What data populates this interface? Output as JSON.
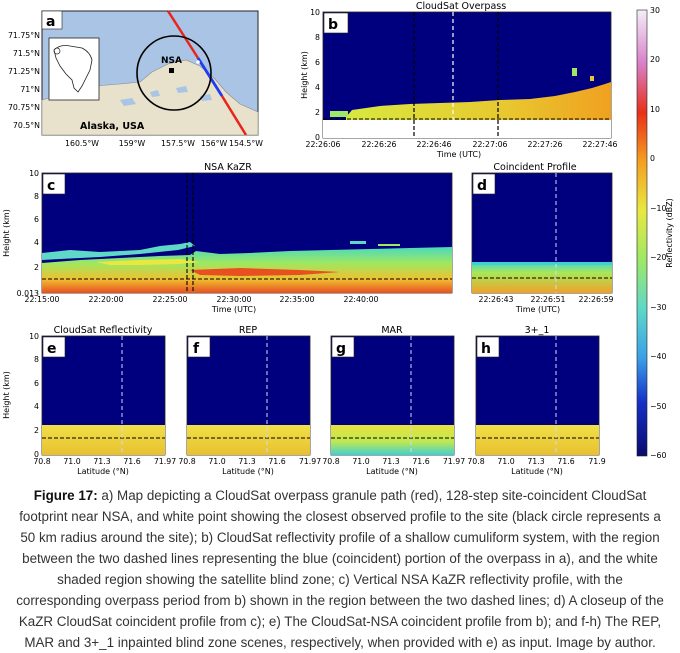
{
  "caption": {
    "label": "Figure 17:",
    "text": " a) Map depicting a CloudSat overpass granule path (red), 128-step site-coincident CloudSat footprint near NSA, and white point showing the closest observed profile to the site (black circle represents a 50 km radius around the site); b) CloudSat reflectivity profile of a shallow cumuliform system, with the region between the two dashed lines representing the blue (coincident) portion of the overpass in a), and the white shaded region showing the satellite blind zone; c) Vertical NSA KaZR reflectivity profile, with the corresponding overpass period from b) shown in the region between the two dashed lines; d) A closeup of the KaZR CloudSat coincident profile from c); e) The CloudSat-NSA coincident profile from b); and f-h) The REP, MAR and 3+_1 inpainted blind zone scenes, respectively, when provided with e) as input. Image by author."
  },
  "colors": {
    "background": "#00007e",
    "map_land": "#e8e2cc",
    "map_ocean": "#a9c4e4",
    "track_red": "#e8241c",
    "track_blue": "#1f3cf0"
  },
  "colorbar": {
    "label": "Reflectivity (dBZ)",
    "ticks": [
      "30",
      "20",
      "10",
      "0",
      "−10",
      "−20",
      "−30",
      "−40",
      "−50",
      "−60"
    ],
    "values": [
      30,
      20,
      10,
      0,
      -10,
      -20,
      -30,
      -40,
      -50,
      -60
    ],
    "range": [
      -60,
      30
    ]
  },
  "panels": {
    "a": {
      "letter": "a",
      "site_label": "NSA",
      "region_label": "Alaska, USA",
      "lat_ticks": [
        "71.75°N",
        "71.5°N",
        "71.25°N",
        "71°N",
        "70.75°N",
        "70.5°N"
      ],
      "lon_ticks": [
        "160.5°W",
        "159°W",
        "157.5°W",
        "156°W",
        "154.5°W"
      ]
    },
    "b": {
      "letter": "b",
      "title": "CloudSat Overpass",
      "ylabel": "Height (km)",
      "xlabel": "Time (UTC)",
      "yticks": [
        "10",
        "8",
        "6",
        "4",
        "2",
        "0"
      ],
      "xticks": [
        "22:26:06",
        "22:26:26",
        "22:26:46",
        "22:27:06",
        "22:27:26",
        "22:27:46"
      ]
    },
    "c": {
      "letter": "c",
      "title": "NSA KaZR",
      "ylabel": "Height (km)",
      "xlabel": "Time (UTC)",
      "yticks": [
        "10",
        "8",
        "6",
        "4",
        "2",
        "0.013"
      ],
      "xticks": [
        "22:15:00",
        "22:20:00",
        "22:25:00",
        "22:30:00",
        "22:35:00",
        "22:40:00"
      ]
    },
    "d": {
      "letter": "d",
      "title": "Coincident Profile",
      "xticks": [
        "22:26:43",
        "22:26:51",
        "22:26:59"
      ]
    },
    "e": {
      "letter": "e",
      "title": "CloudSat Reflectivity",
      "ylabel": "Height (km)",
      "yticks": [
        "10",
        "8",
        "6",
        "4",
        "2",
        "0"
      ]
    },
    "f": {
      "letter": "f",
      "title": "REP"
    },
    "g": {
      "letter": "g",
      "title": "MAR"
    },
    "h": {
      "letter": "h",
      "title": "3+_1"
    },
    "bottom_xlabel": "Latitude (°N)",
    "bottom_xticks": [
      "70.8",
      "71.0",
      "71.3",
      "71.6",
      "71.9"
    ],
    "bottom_xticks_end": [
      "71.97",
      "71.97",
      "71.97",
      "71.9"
    ]
  },
  "chart_data": {
    "type": "heatmap",
    "title": "CloudSat Overpass",
    "xlabel": "Time (UTC)",
    "ylabel": "Height (km)",
    "ylim": [
      0,
      10
    ],
    "colorbar_label": "Reflectivity (dBZ)",
    "colorbar_range": [
      -60,
      30
    ],
    "cloud_top_km": 2.5,
    "blind_zone_top_km": 1.2,
    "panels": [
      "a",
      "b",
      "c",
      "d",
      "e",
      "f",
      "g",
      "h"
    ]
  }
}
